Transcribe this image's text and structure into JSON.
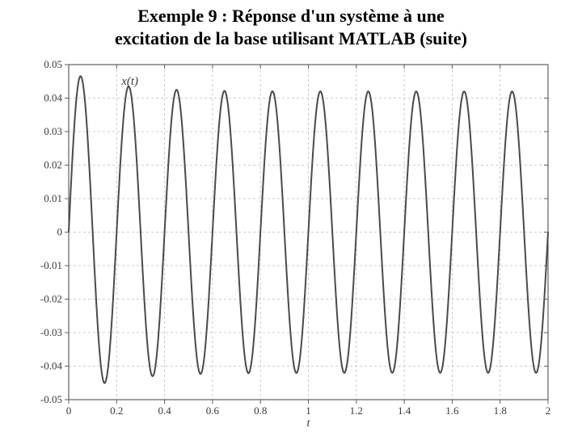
{
  "title_line1": "Exemple 9 : Réponse d'un système à une",
  "title_line2": "excitation de la base utilisant MATLAB (suite)",
  "chart": {
    "type": "line",
    "background_color": "#ffffff",
    "plot_border_color": "#606060",
    "grid_color": "#bdbdbd",
    "grid_dash": "3 3",
    "line_color": "#4a4a4a",
    "line_width": 2.0,
    "xlabel": "t",
    "series_label": "x(t)",
    "label_fontsize": 14,
    "tick_fontsize": 13,
    "xlim": [
      0,
      2
    ],
    "ylim": [
      -0.05,
      0.05
    ],
    "xticks": [
      0,
      0.2,
      0.4,
      0.6,
      0.8,
      1.0,
      1.2,
      1.4,
      1.6,
      1.8,
      2.0
    ],
    "xtick_labels": [
      "0",
      "0.2",
      "0.4",
      "0.6",
      "0.8",
      "1",
      "1.2",
      "1.4",
      "1.6",
      "1.8",
      "2"
    ],
    "yticks": [
      -0.05,
      -0.04,
      -0.03,
      -0.02,
      -0.01,
      0,
      0.01,
      0.02,
      0.03,
      0.04,
      0.05
    ],
    "ytick_labels": [
      "-0.05",
      "-0.04",
      "-0.03",
      "-0.02",
      "-0.01",
      "0",
      "0.01",
      "0.02",
      "0.03",
      "0.04",
      "0.05"
    ],
    "series": {
      "model": "damped_to_steady_sine",
      "frequency_hz": 5.0,
      "dt": 0.002,
      "peaks_first_cycle": {
        "pos": 0.048,
        "neg": -0.049
      },
      "steady_amplitude": 0.042,
      "transient_decay_tau": 0.18,
      "phase_rad": 0.0,
      "initial_value": 0.0
    }
  }
}
